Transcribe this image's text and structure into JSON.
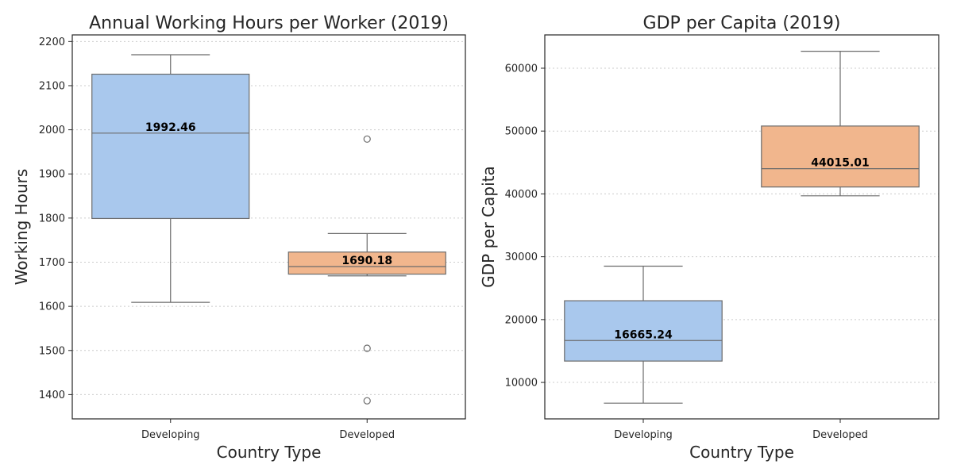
{
  "chart_data": [
    {
      "type": "box",
      "title": "Annual Working Hours per Worker (2019)",
      "xlabel": "Country Type",
      "ylabel": "Working Hours",
      "ylim": [
        1345,
        2215
      ],
      "yticks": [
        1400,
        1500,
        1600,
        1700,
        1800,
        1900,
        2000,
        2100,
        2200
      ],
      "grid": true,
      "categories": [
        "Developing",
        "Developed"
      ],
      "boxes": [
        {
          "category": "Developing",
          "color": "#a9c8ed",
          "whislo": 1609,
          "q1": 1799,
          "med": 1992.46,
          "q3": 2126,
          "whishi": 2170,
          "fliers": [],
          "median_label": "1992.46"
        },
        {
          "category": "Developed",
          "color": "#f1b68d",
          "whislo": 1669,
          "q1": 1673,
          "med": 1690.18,
          "q3": 1723,
          "whishi": 1765,
          "fliers": [
            1979,
            1505,
            1386
          ],
          "median_label": "1690.18"
        }
      ]
    },
    {
      "type": "box",
      "title": "GDP per Capita (2019)",
      "xlabel": "Country Type",
      "ylabel": "GDP per Capita",
      "ylim": [
        4200,
        65300
      ],
      "yticks": [
        10000,
        20000,
        30000,
        40000,
        50000,
        60000
      ],
      "grid": true,
      "categories": [
        "Developing",
        "Developed"
      ],
      "boxes": [
        {
          "category": "Developing",
          "color": "#a9c8ed",
          "whislo": 6700,
          "q1": 13400,
          "med": 16665.24,
          "q3": 23000,
          "whishi": 28500,
          "fliers": [],
          "median_label": "16665.24"
        },
        {
          "category": "Developed",
          "color": "#f1b68d",
          "whislo": 39700,
          "q1": 41100,
          "med": 44015.01,
          "q3": 50800,
          "whishi": 62700,
          "fliers": [],
          "median_label": "44015.01"
        }
      ]
    }
  ]
}
